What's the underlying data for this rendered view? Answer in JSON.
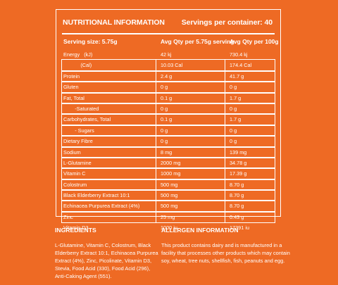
{
  "title": "NUTRITIONAL INFORMATION",
  "servings": "Servings per container: 40",
  "columns": [
    "Serving size: 5.75g",
    "Avg Qty per 5.75g serving",
    "Avg Qty per 100g"
  ],
  "rows": [
    {
      "name": "Energy   (kJ)",
      "serving": "42 kj",
      "per100": "730.4 kj",
      "boxed": false
    },
    {
      "name": "            (Cal)",
      "serving": "10.03 Cal",
      "per100": "174.4 Cal",
      "boxed": true
    },
    {
      "name": "Protein",
      "serving": "2.4 g",
      "per100": "41.7 g",
      "boxed": true
    },
    {
      "name": "Gluten",
      "serving": "0 g",
      "per100": "0 g",
      "boxed": true
    },
    {
      "name": "Fat, Total",
      "serving": "0.1 g",
      "per100": "1.7 g",
      "boxed": true
    },
    {
      "name": "        -Saturated",
      "serving": "0 g",
      "per100": "0 g",
      "boxed": true
    },
    {
      "name": "Carbohydrates, Total",
      "serving": "0.1 g",
      "per100": "1.7 g",
      "boxed": true
    },
    {
      "name": "        - Sugars",
      "serving": "0 g",
      "per100": "0 g",
      "boxed": true
    },
    {
      "name": "Dietary Fibre",
      "serving": "0 g",
      "per100": "0 g",
      "boxed": true
    },
    {
      "name": "Sodium",
      "serving": "8 mg",
      "per100": "139 mg",
      "boxed": true
    },
    {
      "name": "L-Glutamine",
      "serving": "2000 mg",
      "per100": "34.78 g",
      "boxed": true
    },
    {
      "name": "Vitamin C",
      "serving": "1000 mg",
      "per100": "17.39 g",
      "boxed": true
    },
    {
      "name": "Colostrum",
      "serving": "500 mg",
      "per100": "8.70 g",
      "boxed": true
    },
    {
      "name": "Black Elderberry Extract 10:1",
      "serving": "500 mg",
      "per100": "8.70 g",
      "boxed": true
    },
    {
      "name": "Echinacea Purpurea Extract (4%)",
      "serving": "500 mg",
      "per100": "8.70 g",
      "boxed": true
    },
    {
      "name": "Zinc",
      "serving": "25 mg",
      "per100": "0.43 g",
      "boxed": true
    },
    {
      "name": "Vitamin D3",
      "serving": "1000 iu",
      "per100": "17391 iu",
      "boxed": false
    }
  ],
  "ingredients": {
    "heading": "INGREDIENTS",
    "text": "L-Glutamine, Vitamin C, Colostrum, Black Elderberry Extract 10:1, Echinacea Purpurea Extract (4%), Zinc, Picolinate, Vitamin D3, Stevia, Food Acid (330), Food Acid (296), Anti-Caking Agent (551)."
  },
  "allergen": {
    "heading": "ALLERGEN INFORMATION",
    "text": "This product contains dairy and is manufactured in a facility that processes other products which may contain soy, wheat, tree nuts, shellfish, fish, peanuts and egg."
  },
  "colors": {
    "background": "#ee6a24",
    "text": "#ffffff"
  }
}
